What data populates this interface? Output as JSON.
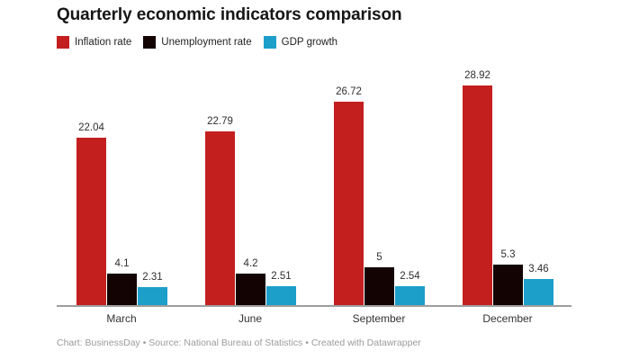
{
  "title": "Quarterly economic indicators comparison",
  "footer": "Chart: BusinessDay • Source: National Bureau of Statistics • Created with Datawrapper",
  "legend": {
    "items": [
      {
        "label": "Inflation rate",
        "color": "#c41f1f"
      },
      {
        "label": "Unemployment rate",
        "color": "#130303"
      },
      {
        "label": "GDP growth",
        "color": "#1c9fc9"
      }
    ]
  },
  "colors": {
    "inflation": "#c41f1f",
    "unemployment": "#130303",
    "gdp": "#1c9fc9",
    "axis_line": "#9e9e9e",
    "value_label": "#2f2f2f",
    "category_label": "#333333",
    "footer_text": "#9b9b9b"
  },
  "chart_data": {
    "type": "bar",
    "grouped": true,
    "title": "Quarterly economic indicators comparison",
    "categories": [
      "March",
      "June",
      "September",
      "December"
    ],
    "series": [
      {
        "name": "Inflation rate",
        "color": "#c41f1f",
        "values": [
          22.04,
          22.79,
          26.72,
          28.92
        ]
      },
      {
        "name": "Unemployment rate",
        "color": "#130303",
        "values": [
          4.1,
          4.2,
          5,
          5.3
        ]
      },
      {
        "name": "GDP growth",
        "color": "#1c9fc9",
        "values": [
          2.31,
          2.51,
          2.54,
          3.46
        ]
      }
    ],
    "xlabel": "",
    "ylabel": "",
    "ylim": [
      0,
      30
    ],
    "grid": false,
    "y_axis_visible": false,
    "value_labels": true,
    "legend_position": "top-left",
    "source_note": "Chart: BusinessDay • Source: National Bureau of Statistics • Created with Datawrapper"
  }
}
